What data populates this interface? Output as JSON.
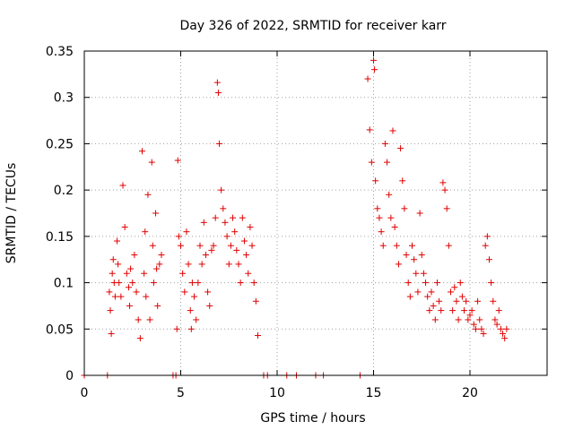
{
  "chart_data": {
    "type": "scatter",
    "title": "Day 326 of 2022, SRMTID for receiver karr",
    "xlabel": "GPS time / hours",
    "ylabel": "SRMTID / TECUs",
    "xlim": [
      0,
      24
    ],
    "ylim": [
      0,
      0.35
    ],
    "xticks": [
      0,
      5,
      10,
      15,
      20
    ],
    "xtick_labels": [
      "0",
      "5",
      "10",
      "15",
      "20"
    ],
    "yticks": [
      0,
      0.05,
      0.1,
      0.15,
      0.2,
      0.25,
      0.3,
      0.35
    ],
    "ytick_labels": [
      "0",
      "0.05",
      "0.1",
      "0.15",
      "0.2",
      "0.25",
      "0.3",
      "0.35"
    ],
    "grid": true,
    "marker": "+",
    "color": "#e00000",
    "series": [
      {
        "name": "SRMTID",
        "x": [
          0.0,
          1.2,
          1.3,
          1.35,
          1.4,
          1.45,
          1.5,
          1.55,
          1.6,
          1.7,
          1.75,
          1.8,
          1.9,
          2.0,
          2.1,
          2.2,
          2.3,
          2.35,
          2.4,
          2.5,
          2.6,
          2.7,
          2.8,
          2.9,
          3.0,
          3.1,
          3.15,
          3.2,
          3.3,
          3.4,
          3.5,
          3.55,
          3.6,
          3.7,
          3.75,
          3.8,
          3.9,
          4.0,
          4.6,
          4.75,
          4.8,
          4.85,
          4.9,
          5.0,
          5.1,
          5.2,
          5.3,
          5.4,
          5.5,
          5.55,
          5.6,
          5.7,
          5.8,
          5.9,
          6.0,
          6.1,
          6.2,
          6.3,
          6.4,
          6.5,
          6.6,
          6.7,
          6.8,
          6.9,
          6.95,
          7.0,
          7.1,
          7.2,
          7.3,
          7.4,
          7.5,
          7.6,
          7.7,
          7.8,
          7.9,
          8.0,
          8.1,
          8.2,
          8.3,
          8.4,
          8.5,
          8.6,
          8.7,
          8.8,
          8.9,
          9.0,
          9.3,
          9.5,
          10.5,
          11.0,
          12.0,
          12.4,
          14.3,
          14.7,
          14.8,
          14.9,
          15.0,
          15.05,
          15.1,
          15.2,
          15.3,
          15.4,
          15.5,
          15.6,
          15.7,
          15.8,
          15.9,
          16.0,
          16.1,
          16.2,
          16.3,
          16.4,
          16.5,
          16.6,
          16.7,
          16.8,
          16.9,
          17.0,
          17.1,
          17.2,
          17.3,
          17.4,
          17.5,
          17.6,
          17.7,
          17.8,
          17.9,
          18.0,
          18.1,
          18.2,
          18.3,
          18.4,
          18.5,
          18.6,
          18.7,
          18.8,
          18.9,
          19.0,
          19.1,
          19.2,
          19.3,
          19.4,
          19.5,
          19.6,
          19.7,
          19.8,
          19.9,
          20.0,
          20.1,
          20.2,
          20.3,
          20.4,
          20.5,
          20.6,
          20.7,
          20.8,
          20.9,
          21.0,
          21.1,
          21.2,
          21.3,
          21.4,
          21.5,
          21.6,
          21.7,
          21.8,
          21.9
        ],
        "y": [
          0.0,
          0.0,
          0.09,
          0.07,
          0.045,
          0.11,
          0.125,
          0.1,
          0.085,
          0.145,
          0.12,
          0.1,
          0.085,
          0.205,
          0.16,
          0.11,
          0.095,
          0.075,
          0.115,
          0.1,
          0.13,
          0.09,
          0.06,
          0.04,
          0.242,
          0.11,
          0.155,
          0.085,
          0.195,
          0.06,
          0.23,
          0.14,
          0.1,
          0.175,
          0.115,
          0.075,
          0.12,
          0.13,
          0.0,
          0.0,
          0.05,
          0.232,
          0.15,
          0.14,
          0.11,
          0.09,
          0.155,
          0.12,
          0.07,
          0.05,
          0.1,
          0.085,
          0.06,
          0.1,
          0.14,
          0.12,
          0.165,
          0.13,
          0.09,
          0.075,
          0.135,
          0.14,
          0.17,
          0.316,
          0.305,
          0.25,
          0.2,
          0.18,
          0.165,
          0.15,
          0.12,
          0.14,
          0.17,
          0.155,
          0.135,
          0.12,
          0.1,
          0.17,
          0.145,
          0.13,
          0.11,
          0.16,
          0.14,
          0.1,
          0.08,
          0.043,
          0.0,
          0.0,
          0.0,
          0.0,
          0.0,
          0.0,
          0.0,
          0.32,
          0.265,
          0.23,
          0.34,
          0.33,
          0.21,
          0.18,
          0.17,
          0.155,
          0.14,
          0.25,
          0.23,
          0.195,
          0.17,
          0.264,
          0.16,
          0.14,
          0.12,
          0.245,
          0.21,
          0.18,
          0.13,
          0.1,
          0.085,
          0.14,
          0.125,
          0.11,
          0.09,
          0.175,
          0.13,
          0.11,
          0.1,
          0.085,
          0.07,
          0.09,
          0.075,
          0.06,
          0.1,
          0.08,
          0.07,
          0.208,
          0.2,
          0.18,
          0.14,
          0.09,
          0.07,
          0.095,
          0.08,
          0.06,
          0.1,
          0.085,
          0.07,
          0.08,
          0.06,
          0.065,
          0.07,
          0.055,
          0.05,
          0.08,
          0.06,
          0.05,
          0.045,
          0.14,
          0.15,
          0.125,
          0.1,
          0.08,
          0.06,
          0.055,
          0.07,
          0.05,
          0.045,
          0.04,
          0.05
        ]
      }
    ]
  }
}
